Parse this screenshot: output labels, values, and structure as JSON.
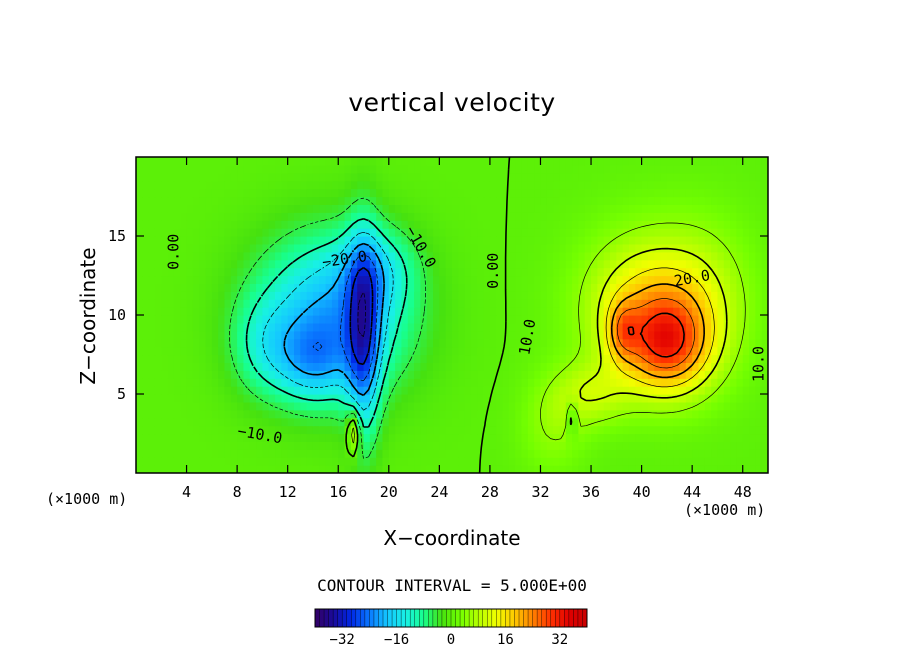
{
  "chart_data": {
    "type": "heatmap",
    "title": "vertical velocity",
    "xlabel": "X−coordinate",
    "ylabel": "Z−coordinate",
    "x_unit_left": "(×1000 m)",
    "x_unit_right": "(×1000 m)",
    "xlim": [
      0,
      50
    ],
    "ylim": [
      0,
      20
    ],
    "x_ticks": [
      4,
      8,
      12,
      16,
      20,
      24,
      28,
      32,
      36,
      40,
      44,
      48
    ],
    "x_tick_labels": [
      "4",
      "8",
      "12",
      "16",
      "20",
      "24",
      "28",
      "32",
      "36",
      "40",
      "44",
      "48"
    ],
    "y_ticks": [
      5,
      10,
      15
    ],
    "y_tick_labels": [
      "5",
      "10",
      "15"
    ],
    "grid": false,
    "contour_interval_label": "CONTOUR INTERVAL = 5.000E+00",
    "contour_interval": 5.0,
    "value_range": [
      -40,
      40
    ],
    "contour_labels": [
      {
        "text": "0.00",
        "x": 3.0,
        "y": 14.0,
        "angle": -90
      },
      {
        "text": "−20.0",
        "x": 16.5,
        "y": 13.5,
        "angle": -8
      },
      {
        "text": "−10.0",
        "x": 22.5,
        "y": 14.3,
        "angle": 60
      },
      {
        "text": "0.00",
        "x": 28.3,
        "y": 12.8,
        "angle": -90
      },
      {
        "text": "−10.0",
        "x": 9.8,
        "y": 2.4,
        "angle": 10
      },
      {
        "text": "10.0",
        "x": 31.0,
        "y": 8.6,
        "angle": -80
      },
      {
        "text": "20.0",
        "x": 44.0,
        "y": 12.3,
        "angle": -10
      },
      {
        "text": "10.0",
        "x": 49.3,
        "y": 6.9,
        "angle": -90
      }
    ],
    "colorbar": {
      "ticks": [
        -32,
        -16,
        0,
        16,
        32
      ],
      "tick_labels": [
        "−32",
        "−16",
        "0",
        "16",
        "32"
      ],
      "range": [
        -40,
        40
      ]
    },
    "colorscale": [
      "#330066",
      "#1a0a99",
      "#0028e6",
      "#0a78ff",
      "#14c8ff",
      "#18f0e6",
      "#18ff8c",
      "#46e10f",
      "#73ff00",
      "#b4ff00",
      "#f0ff00",
      "#ffc800",
      "#ff8200",
      "#ff3200",
      "#e10000",
      "#c80000"
    ]
  }
}
